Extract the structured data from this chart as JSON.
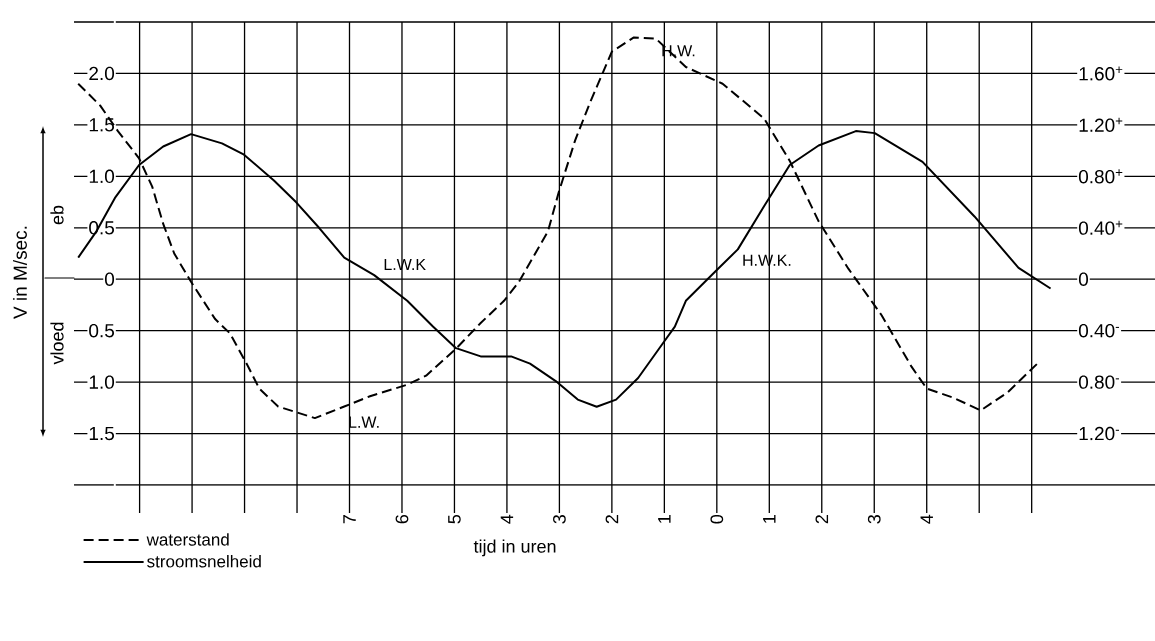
{
  "chart_data": {
    "type": "line",
    "xlabel": "tijd in uren",
    "ylabel": "V in M/sec.",
    "xlim": [
      -12.25,
      8.35
    ],
    "ylim": [
      -2.0,
      2.5
    ],
    "y2lim": [
      -1.6,
      2.0
    ],
    "xticks": [
      {
        "value": -11,
        "label": null
      },
      {
        "value": -10,
        "label": null
      },
      {
        "value": -9,
        "label": null
      },
      {
        "value": -8,
        "label": null
      },
      {
        "value": -7,
        "label": "7"
      },
      {
        "value": -6,
        "label": "6"
      },
      {
        "value": -5,
        "label": "5"
      },
      {
        "value": -4,
        "label": "4"
      },
      {
        "value": -3,
        "label": "3"
      },
      {
        "value": -2,
        "label": "2"
      },
      {
        "value": -1,
        "label": "1"
      },
      {
        "value": 0,
        "label": "0"
      },
      {
        "value": 1,
        "label": "1"
      },
      {
        "value": 2,
        "label": "2"
      },
      {
        "value": 3,
        "label": "3"
      },
      {
        "value": 4,
        "label": "4"
      },
      {
        "value": 5,
        "label": null
      },
      {
        "value": 6,
        "label": null
      }
    ],
    "yticks": [
      {
        "value": 2.5,
        "label": null
      },
      {
        "value": 2.0,
        "label": "2.0"
      },
      {
        "value": 1.5,
        "label": "1.5"
      },
      {
        "value": 1.0,
        "label": "1.0"
      },
      {
        "value": 0.5,
        "label": "0.5"
      },
      {
        "value": 0,
        "label": "0"
      },
      {
        "value": -0.5,
        "label": "0.5"
      },
      {
        "value": -1.0,
        "label": "1.0"
      },
      {
        "value": -1.5,
        "label": "1.5"
      },
      {
        "value": -2.0,
        "label": null
      }
    ],
    "y2ticks": [
      {
        "value": 1.6,
        "label": "1.60$^{+}$"
      },
      {
        "value": 1.2,
        "label": "1.20$^{+}$"
      },
      {
        "value": 0.8,
        "label": "0.80$^{+}$"
      },
      {
        "value": 0.4,
        "label": "0.40$^{+}$"
      },
      {
        "value": 0,
        "label": "0"
      },
      {
        "value": -0.4,
        "label": "0.40$^{-}$"
      },
      {
        "value": -0.8,
        "label": "0.80$^{-}$"
      },
      {
        "value": -1.2,
        "label": "1.20$^{-}$"
      }
    ],
    "grid": true,
    "legend": "bottom left",
    "marker": "none",
    "annotations": [
      "eb",
      "vloed",
      {
        "text": "L.W.K",
        "x": -6.53,
        "y": 0.04
      },
      {
        "text": "H.W.K.",
        "x": 0,
        "y": 0.08
      },
      {
        "text": "H.W.",
        "x": -1.58,
        "y": 2.35
      },
      {
        "text": "L.W.",
        "x": -7.66,
        "y": -1.35
      }
    ],
    "series": [
      {
        "name": "waterstand",
        "color": "#000000",
        "axis": "y2",
        "line_style": "dashed",
        "x": [
          -12.17,
          -11.75,
          -11.41,
          -11.01,
          -10.76,
          -10.55,
          -10.34,
          -10.02,
          -9.56,
          -9.28,
          -8.93,
          -8.72,
          -8.36,
          -7.66,
          -7.1,
          -6.61,
          -5.9,
          -5.54,
          -4.97,
          -4.5,
          -4.06,
          -3.77,
          -3.22,
          -3.01,
          -2.7,
          -2.42,
          -2.0,
          -1.58,
          -1.16,
          -0.59,
          0.11,
          0.9,
          1.39,
          1.94,
          2.51,
          3.14,
          3.71,
          4.0,
          4.5,
          5.03,
          5.54,
          6.15
        ],
        "values": [
          1.52,
          1.35,
          1.15,
          0.94,
          0.72,
          0.43,
          0.2,
          -0.02,
          -0.31,
          -0.42,
          -0.68,
          -0.85,
          -0.99,
          -1.08,
          -0.99,
          -0.91,
          -0.82,
          -0.75,
          -0.54,
          -0.34,
          -0.17,
          -0.02,
          0.37,
          0.68,
          1.08,
          1.37,
          1.77,
          1.88,
          1.87,
          1.65,
          1.52,
          1.25,
          0.92,
          0.45,
          0.08,
          -0.28,
          -0.68,
          -0.85,
          -0.92,
          -1.02,
          -0.88,
          -0.64
        ]
      },
      {
        "name": "stroomsnelheid",
        "color": "#000000",
        "line_style": "solid",
        "x": [
          -12.17,
          -11.83,
          -11.47,
          -11.01,
          -10.55,
          -10.02,
          -9.43,
          -9.01,
          -8.44,
          -8.02,
          -7.58,
          -7.1,
          -6.53,
          -5.9,
          -5.41,
          -4.97,
          -4.5,
          -3.92,
          -3.56,
          -3.07,
          -2.65,
          -2.29,
          -1.92,
          -1.5,
          -1.01,
          -0.8,
          -0.59,
          -0.02,
          0.4,
          0.9,
          1.39,
          1.94,
          2.65,
          3.01,
          3.92,
          4.91,
          5.75,
          6.36
        ],
        "values": [
          0.21,
          0.46,
          0.79,
          1.11,
          1.29,
          1.41,
          1.32,
          1.21,
          0.96,
          0.75,
          0.5,
          0.21,
          0.04,
          -0.21,
          -0.46,
          -0.67,
          -0.75,
          -0.75,
          -0.82,
          -0.99,
          -1.17,
          -1.24,
          -1.17,
          -0.96,
          -0.61,
          -0.46,
          -0.21,
          0.08,
          0.29,
          0.71,
          1.11,
          1.3,
          1.44,
          1.42,
          1.14,
          0.61,
          0.11,
          -0.09
        ]
      }
    ]
  }
}
